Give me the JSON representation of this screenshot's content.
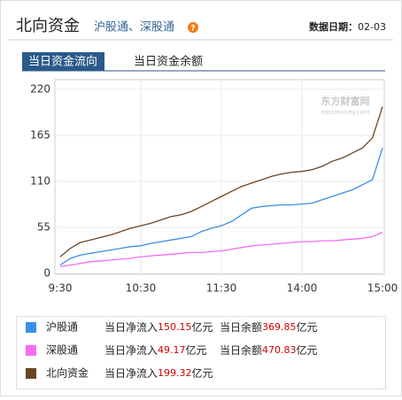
{
  "header": {
    "title": "北向资金",
    "subtitle": "沪股通、深股通",
    "date_label": "数据日期：",
    "date": "02-03"
  },
  "tabs": [
    "当日资金流向",
    "当日资金余额"
  ],
  "watermark": {
    "brand": "东方财富网",
    "site": "eastmoney.com"
  },
  "chart_data": {
    "type": "line",
    "x": [
      "9:30",
      null,
      null,
      null,
      null,
      null,
      null,
      null,
      "10:30",
      null,
      null,
      null,
      null,
      null,
      null,
      null,
      "11:30",
      null,
      null,
      null,
      null,
      null,
      null,
      null,
      "14:00",
      null,
      null,
      null,
      null,
      null,
      null,
      null,
      "15:00"
    ],
    "series": [
      {
        "name": "沪股通",
        "color": "#3a8ee6",
        "values": [
          10,
          18,
          22,
          24,
          26,
          28,
          30,
          32,
          33,
          36,
          38,
          40,
          42,
          44,
          50,
          54,
          57,
          62,
          70,
          78,
          80,
          81,
          82,
          82,
          83,
          84,
          88,
          92,
          96,
          100,
          106,
          112,
          150.15
        ]
      },
      {
        "name": "深股通",
        "color": "#f56cf3",
        "values": [
          8,
          10,
          12,
          14,
          15,
          16,
          17,
          18,
          20,
          21,
          22,
          23,
          24,
          25,
          25,
          26,
          27,
          29,
          31,
          33,
          34,
          35,
          36,
          37,
          38,
          38,
          39,
          39,
          40,
          41,
          42,
          44,
          49.17
        ]
      },
      {
        "name": "北向资金",
        "color": "#6b4522",
        "values": [
          20,
          30,
          37,
          40,
          43,
          46,
          50,
          54,
          57,
          60,
          64,
          68,
          70,
          74,
          80,
          86,
          92,
          98,
          104,
          108,
          112,
          116,
          119,
          121,
          122,
          124,
          128,
          134,
          138,
          144,
          150,
          162,
          199.32
        ]
      }
    ],
    "ylim": [
      0,
      220
    ],
    "yticks": [
      0,
      55,
      110,
      165,
      220
    ],
    "grid": true
  },
  "legend": {
    "inflow_label": "当日净流入",
    "balance_label": "当日余额",
    "unit": "亿元",
    "rows": [
      {
        "inflow": 150.15,
        "balance": 369.85
      },
      {
        "inflow": 49.17,
        "balance": 470.83
      },
      {
        "inflow": 199.32
      }
    ]
  }
}
